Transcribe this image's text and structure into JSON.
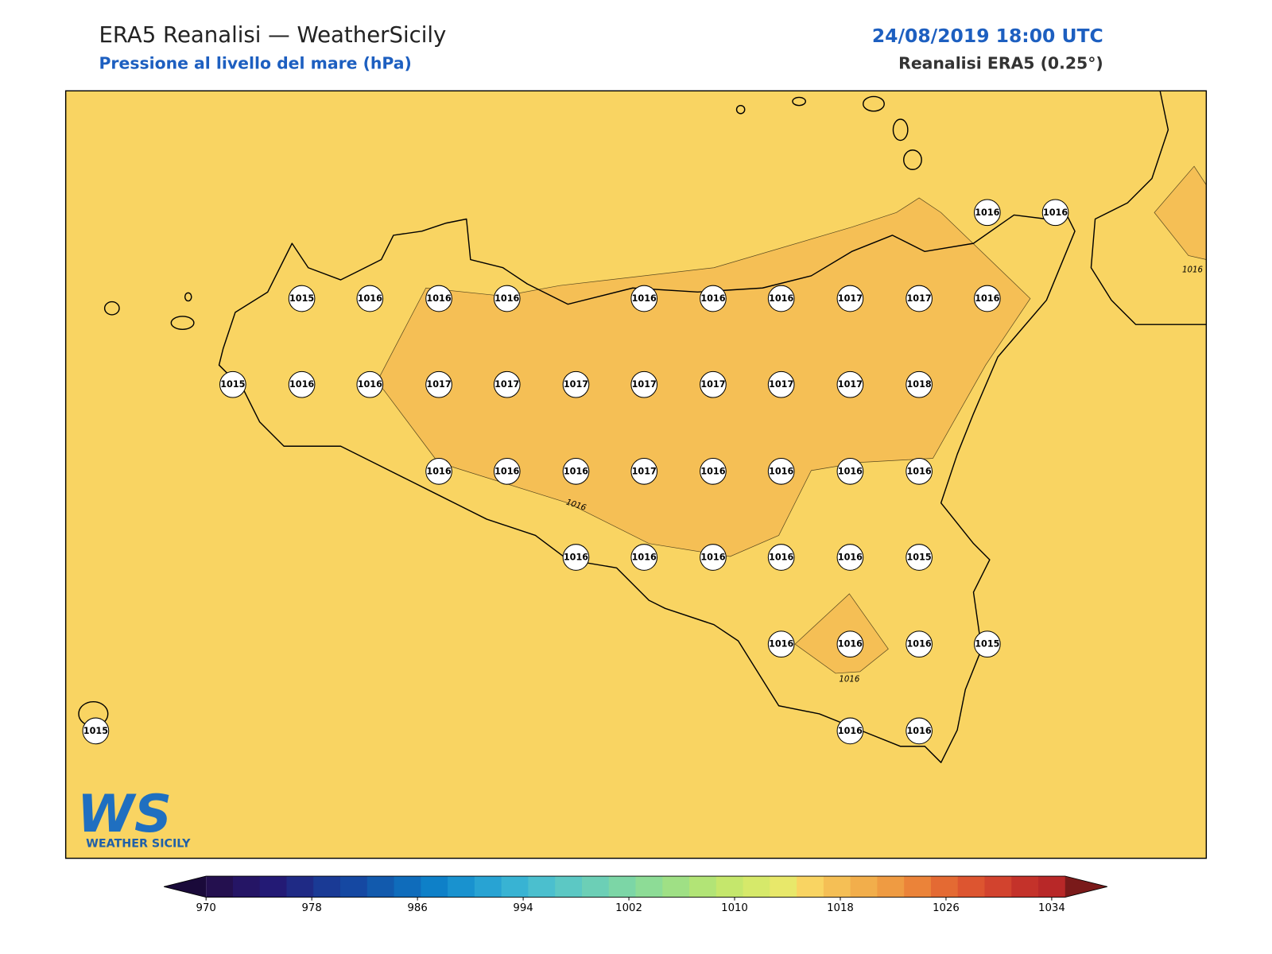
{
  "header": {
    "title": "ERA5 Reanalisi — WeatherSicily",
    "subtitle": "Pressione al livello del mare (hPa)",
    "date": "24/08/2019 18:00 UTC",
    "source": "Reanalisi ERA5 (0.25°)"
  },
  "stations": [
    1016,
    1016,
    1015,
    1016,
    1016,
    1016,
    1016,
    1016,
    1016,
    1017,
    1017,
    1016,
    1015,
    1016,
    1016,
    1017,
    1017,
    1017,
    1017,
    1017,
    1017,
    1017,
    1018,
    1016,
    1016,
    1016,
    1017,
    1016,
    1016,
    1016,
    1016,
    1016,
    1016,
    1016,
    1016,
    1016,
    1015,
    1016,
    1016,
    1016,
    1015,
    1015,
    1016,
    1016
  ],
  "contour_labels": [
    "1016",
    "1016",
    "1016"
  ],
  "colorbar": {
    "ticks": [
      970,
      978,
      986,
      994,
      1002,
      1010,
      1018,
      1026,
      1034
    ],
    "colors": [
      "#24104f",
      "#251565",
      "#231a75",
      "#1f2a85",
      "#1a3a95",
      "#1548a2",
      "#125aad",
      "#0f6cbb",
      "#0e80c8",
      "#1992cf",
      "#28a3d3",
      "#38b3d3",
      "#4bbfce",
      "#5cc8c4",
      "#6ccfb6",
      "#7cd6a6",
      "#8ddc96",
      "#9fe085",
      "#b2e476",
      "#c5e76c",
      "#d6e96a",
      "#e8e86a",
      "#f9d462",
      "#f5bf55",
      "#f2ae4b",
      "#ef9b42",
      "#eb8339",
      "#e46a33",
      "#dd5530",
      "#d2432e",
      "#c4322a",
      "#b82828"
    ],
    "under_color": "#1a0a3a",
    "over_color": "#7a1a1a"
  },
  "logo": {
    "mark": "WS",
    "text": "WEATHER SICILY"
  }
}
